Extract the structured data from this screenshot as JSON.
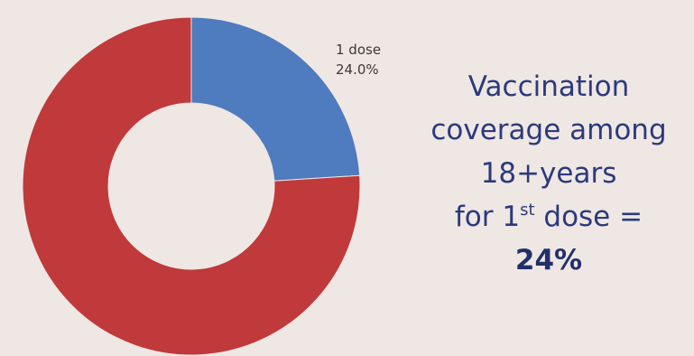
{
  "chart_data": {
    "type": "pie",
    "style": "donut",
    "slices": [
      {
        "value": 24.0,
        "color": "#4f7bbf"
      },
      {
        "value": 76.0,
        "color": "#c0393b"
      }
    ],
    "data_label": {
      "name": "1 dose",
      "value": "24.0%"
    }
  },
  "caption": {
    "line1": "Vaccination",
    "line2": "coverage among",
    "line3": "18+years",
    "line4_prefix": "for 1",
    "line4_sup": "st",
    "line4_suffix": " dose =",
    "line5": "24%"
  }
}
